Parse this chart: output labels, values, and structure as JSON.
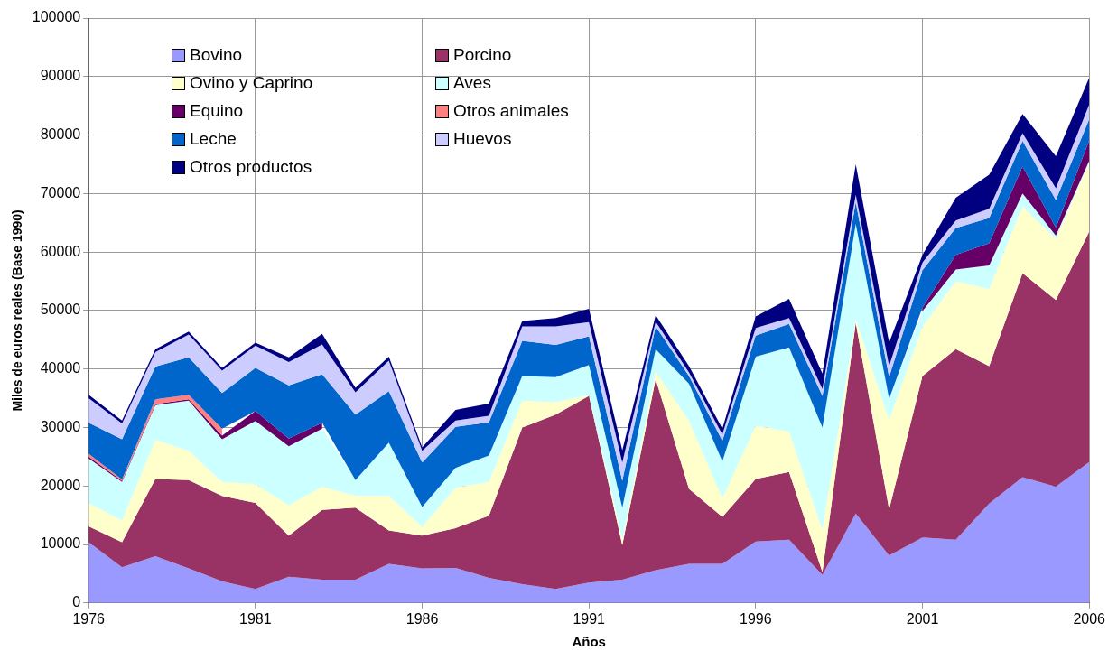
{
  "chart_data": {
    "type": "area",
    "stacked": true,
    "xlabel": "Años",
    "ylabel": "Miles de euros reales (Base 1990)",
    "x": [
      1976,
      1977,
      1978,
      1979,
      1980,
      1981,
      1982,
      1983,
      1984,
      1985,
      1986,
      1987,
      1988,
      1989,
      1990,
      1991,
      1992,
      1993,
      1994,
      1995,
      1996,
      1997,
      1998,
      1999,
      2000,
      2001,
      2002,
      2003,
      2004,
      2005,
      2006
    ],
    "xlim": [
      1976,
      2006
    ],
    "xticks": [
      1976,
      1981,
      1986,
      1991,
      1996,
      2001,
      2006
    ],
    "ylim": [
      0,
      100000
    ],
    "yticks": [
      0,
      10000,
      20000,
      30000,
      40000,
      50000,
      60000,
      70000,
      80000,
      90000,
      100000
    ],
    "grid": true,
    "legend": "top left",
    "series": [
      {
        "name": "Bovino",
        "color": "#9999ff",
        "values": [
          10400,
          6100,
          8000,
          5900,
          3700,
          2400,
          4500,
          4000,
          4000,
          6700,
          5900,
          6000,
          4300,
          3200,
          2400,
          3500,
          4000,
          5600,
          6700,
          6700,
          10500,
          10800,
          4800,
          15300,
          8100,
          11200,
          10800,
          17000,
          21500,
          19900,
          24100
        ]
      },
      {
        "name": "Porcino",
        "color": "#993366",
        "values": [
          2700,
          4300,
          13200,
          15100,
          14600,
          14700,
          7000,
          11900,
          12300,
          5700,
          5600,
          6800,
          10600,
          26800,
          29800,
          31900,
          5900,
          32700,
          12800,
          8000,
          10700,
          11600,
          500,
          32600,
          7900,
          27600,
          32600,
          23500,
          34900,
          31900,
          39400
        ]
      },
      {
        "name": "Ovino y Caprino",
        "color": "#ffffcc",
        "values": [
          4000,
          3700,
          6700,
          5000,
          2400,
          3200,
          5200,
          4000,
          2000,
          5900,
          1500,
          6900,
          5800,
          4600,
          2100,
          200,
          1000,
          1300,
          11600,
          3200,
          9100,
          6900,
          7200,
          600,
          15300,
          8400,
          11600,
          13200,
          11400,
          10400,
          11800
        ]
      },
      {
        "name": "Aves",
        "color": "#ccffff",
        "values": [
          7600,
          6600,
          5900,
          8600,
          7300,
          10800,
          10100,
          9900,
          2700,
          9100,
          3400,
          3400,
          4500,
          4200,
          4300,
          5100,
          5400,
          3800,
          6400,
          6300,
          11800,
          14400,
          17500,
          16300,
          3600,
          2700,
          2000,
          4000,
          2200,
          600,
          300
        ]
      },
      {
        "name": "Equino",
        "color": "#660066",
        "values": [
          300,
          200,
          200,
          200,
          600,
          1700,
          1300,
          1000,
          null,
          null,
          null,
          null,
          null,
          null,
          null,
          null,
          null,
          null,
          null,
          null,
          null,
          null,
          null,
          null,
          null,
          600,
          2500,
          3800,
          4600,
          1400,
          3500
        ]
      },
      {
        "name": "Otros animales",
        "color": "#ff8080",
        "values": [
          500,
          200,
          800,
          800,
          1200,
          null,
          null,
          null,
          null,
          null,
          null,
          null,
          null,
          null,
          null,
          null,
          null,
          null,
          null,
          null,
          null,
          null,
          null,
          null,
          null,
          null,
          null,
          null,
          null,
          null,
          null
        ]
      },
      {
        "name": "Leche",
        "color": "#0066cc",
        "values": [
          5300,
          6900,
          5600,
          6400,
          6100,
          7400,
          9100,
          8300,
          11200,
          8800,
          7600,
          7000,
          5700,
          6000,
          5500,
          4900,
          4600,
          3900,
          1300,
          3500,
          3600,
          4000,
          5400,
          3700,
          3700,
          6400,
          4600,
          4300,
          4400,
          4700,
          3600
        ]
      },
      {
        "name": "Huevos",
        "color": "#ccccff",
        "values": [
          4200,
          2700,
          2500,
          3900,
          3800,
          3800,
          4000,
          5100,
          3800,
          5200,
          2000,
          1100,
          1100,
          2500,
          3200,
          2400,
          3100,
          800,
          600,
          1100,
          1300,
          1000,
          1200,
          1300,
          1900,
          1300,
          1300,
          1600,
          1300,
          2000,
          2500
        ]
      },
      {
        "name": "Otros productos",
        "color": "#000080",
        "values": [
          600,
          500,
          500,
          500,
          500,
          500,
          800,
          1800,
          800,
          700,
          600,
          1800,
          2100,
          900,
          1400,
          2300,
          2100,
          1100,
          1100,
          1000,
          2000,
          3300,
          2600,
          5200,
          4000,
          1300,
          3900,
          5800,
          3300,
          5500,
          4600
        ]
      }
    ]
  }
}
